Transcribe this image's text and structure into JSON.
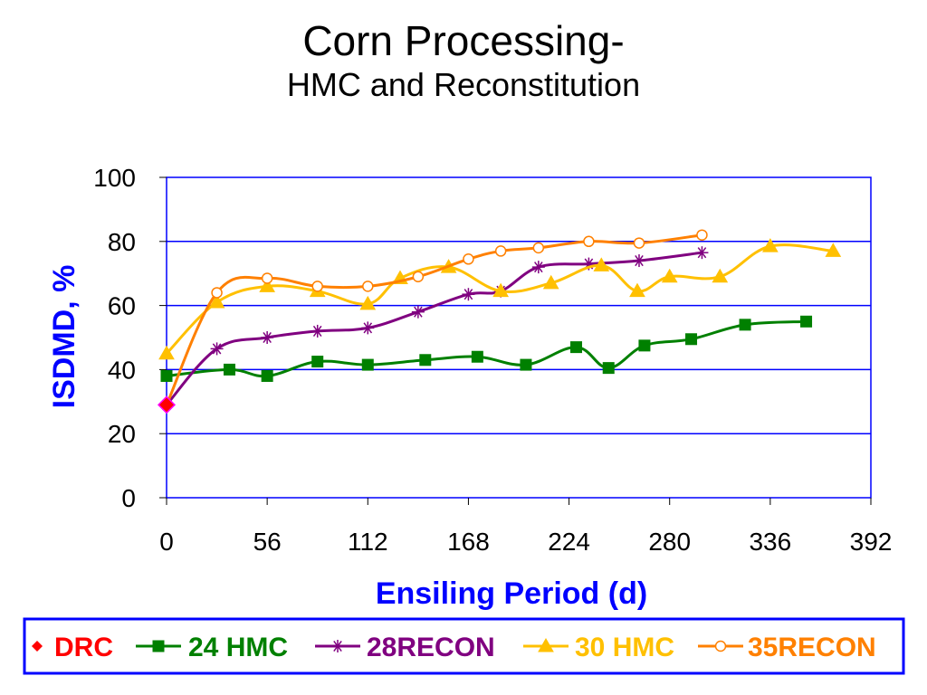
{
  "chart_data": {
    "type": "line",
    "title": "Corn Processing-",
    "subtitle": "HMC and Reconstitution",
    "xlabel": "Ensiling Period (d)",
    "ylabel": "ISDMD, %",
    "xlim": [
      0,
      392
    ],
    "ylim": [
      0,
      100
    ],
    "x_ticks": [
      "0",
      "56",
      "112",
      "168",
      "224",
      "280",
      "336",
      "392"
    ],
    "y_ticks": [
      "0",
      "20",
      "40",
      "60",
      "80",
      "100"
    ],
    "grid": "horizontal",
    "legend_position": "bottom",
    "series": [
      {
        "name": "DRC",
        "color": "#ff0000",
        "marker": "diamond",
        "points": [
          [
            0,
            29
          ]
        ]
      },
      {
        "name": "24 HMC",
        "color": "#008000",
        "marker": "square",
        "points": [
          [
            0,
            38
          ],
          [
            35,
            40
          ],
          [
            56,
            38
          ],
          [
            84,
            42.5
          ],
          [
            112,
            41.5
          ],
          [
            144,
            43
          ],
          [
            173,
            44
          ],
          [
            200,
            41.5
          ],
          [
            228,
            47
          ],
          [
            246,
            40.5
          ],
          [
            266,
            47.5
          ],
          [
            292,
            49.5
          ],
          [
            322,
            54
          ],
          [
            356,
            55
          ]
        ]
      },
      {
        "name": "28RECON",
        "color": "#800080",
        "marker": "asterisk",
        "points": [
          [
            0,
            29
          ],
          [
            28,
            46.5
          ],
          [
            56,
            50
          ],
          [
            84,
            52
          ],
          [
            112,
            53
          ],
          [
            140,
            58
          ],
          [
            168,
            63.5
          ],
          [
            186,
            64.5
          ],
          [
            207,
            72
          ],
          [
            235,
            73
          ],
          [
            263,
            74
          ],
          [
            298,
            76.5
          ]
        ]
      },
      {
        "name": "30 HMC",
        "color": "#ffc000",
        "marker": "triangle",
        "points": [
          [
            0,
            45
          ],
          [
            28,
            61
          ],
          [
            56,
            66
          ],
          [
            84,
            64.5
          ],
          [
            112,
            60.5
          ],
          [
            130,
            68.5
          ],
          [
            157,
            72
          ],
          [
            186,
            64.5
          ],
          [
            214,
            67
          ],
          [
            242,
            72.5
          ],
          [
            262,
            64.5
          ],
          [
            280,
            69
          ],
          [
            308,
            69
          ],
          [
            336,
            78.5
          ],
          [
            371,
            77
          ]
        ]
      },
      {
        "name": "35RECON",
        "color": "#ff8000",
        "marker": "circle",
        "points": [
          [
            0,
            29
          ],
          [
            28,
            64
          ],
          [
            56,
            68.5
          ],
          [
            84,
            66
          ],
          [
            112,
            66
          ],
          [
            140,
            69
          ],
          [
            168,
            74.5
          ],
          [
            186,
            77
          ],
          [
            207,
            78
          ],
          [
            235,
            80
          ],
          [
            263,
            79.5
          ],
          [
            298,
            82
          ]
        ]
      }
    ]
  },
  "colors": {
    "axis_label": "#0000ff",
    "plot_border": "#0000ff",
    "gridline": "#0000ff",
    "legend_border": "#0000ff"
  }
}
